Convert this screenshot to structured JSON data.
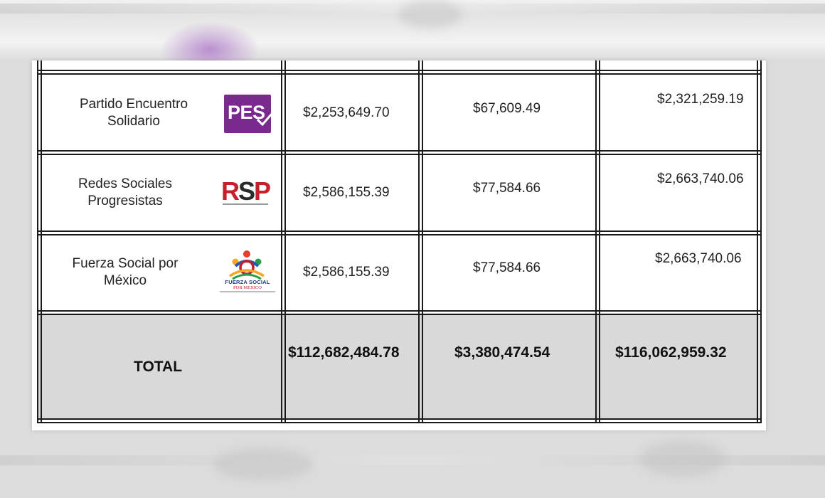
{
  "table": {
    "rows": [
      {
        "party": "Partido Encuentro Solidario",
        "party_line1": "Partido Encuentro",
        "party_line2": "Solidario",
        "logo": "PES",
        "col1": "$2,253,649.70",
        "col2": "$67,609.49",
        "col3": "$2,321,259.19"
      },
      {
        "party": "Redes Sociales Progresistas",
        "party_line1": "Redes Sociales",
        "party_line2": "Progresistas",
        "logo": "RSP",
        "col1": "$2,586,155.39",
        "col2": "$77,584.66",
        "col3": "$2,663,740.06"
      },
      {
        "party": "Fuerza Social por México",
        "party_line1": "Fuerza Social por",
        "party_line2": "México",
        "logo": "FUERZA SOCIAL",
        "logo_sub": "POR MEXICO",
        "col1": "$2,586,155.39",
        "col2": "$77,584.66",
        "col3": "$2,663,740.06"
      }
    ],
    "total": {
      "label": "TOTAL",
      "col1": "$112,682,484.78",
      "col2": "$3,380,474.54",
      "col3": "$116,062,959.32"
    }
  },
  "colors": {
    "pes_purple": "#7a2a8e",
    "rsp_red": "#c81f2c",
    "total_fill": "#d9d9d9"
  },
  "icons": [
    "pes-logo",
    "rsp-logo",
    "fuerza-social-logo"
  ]
}
